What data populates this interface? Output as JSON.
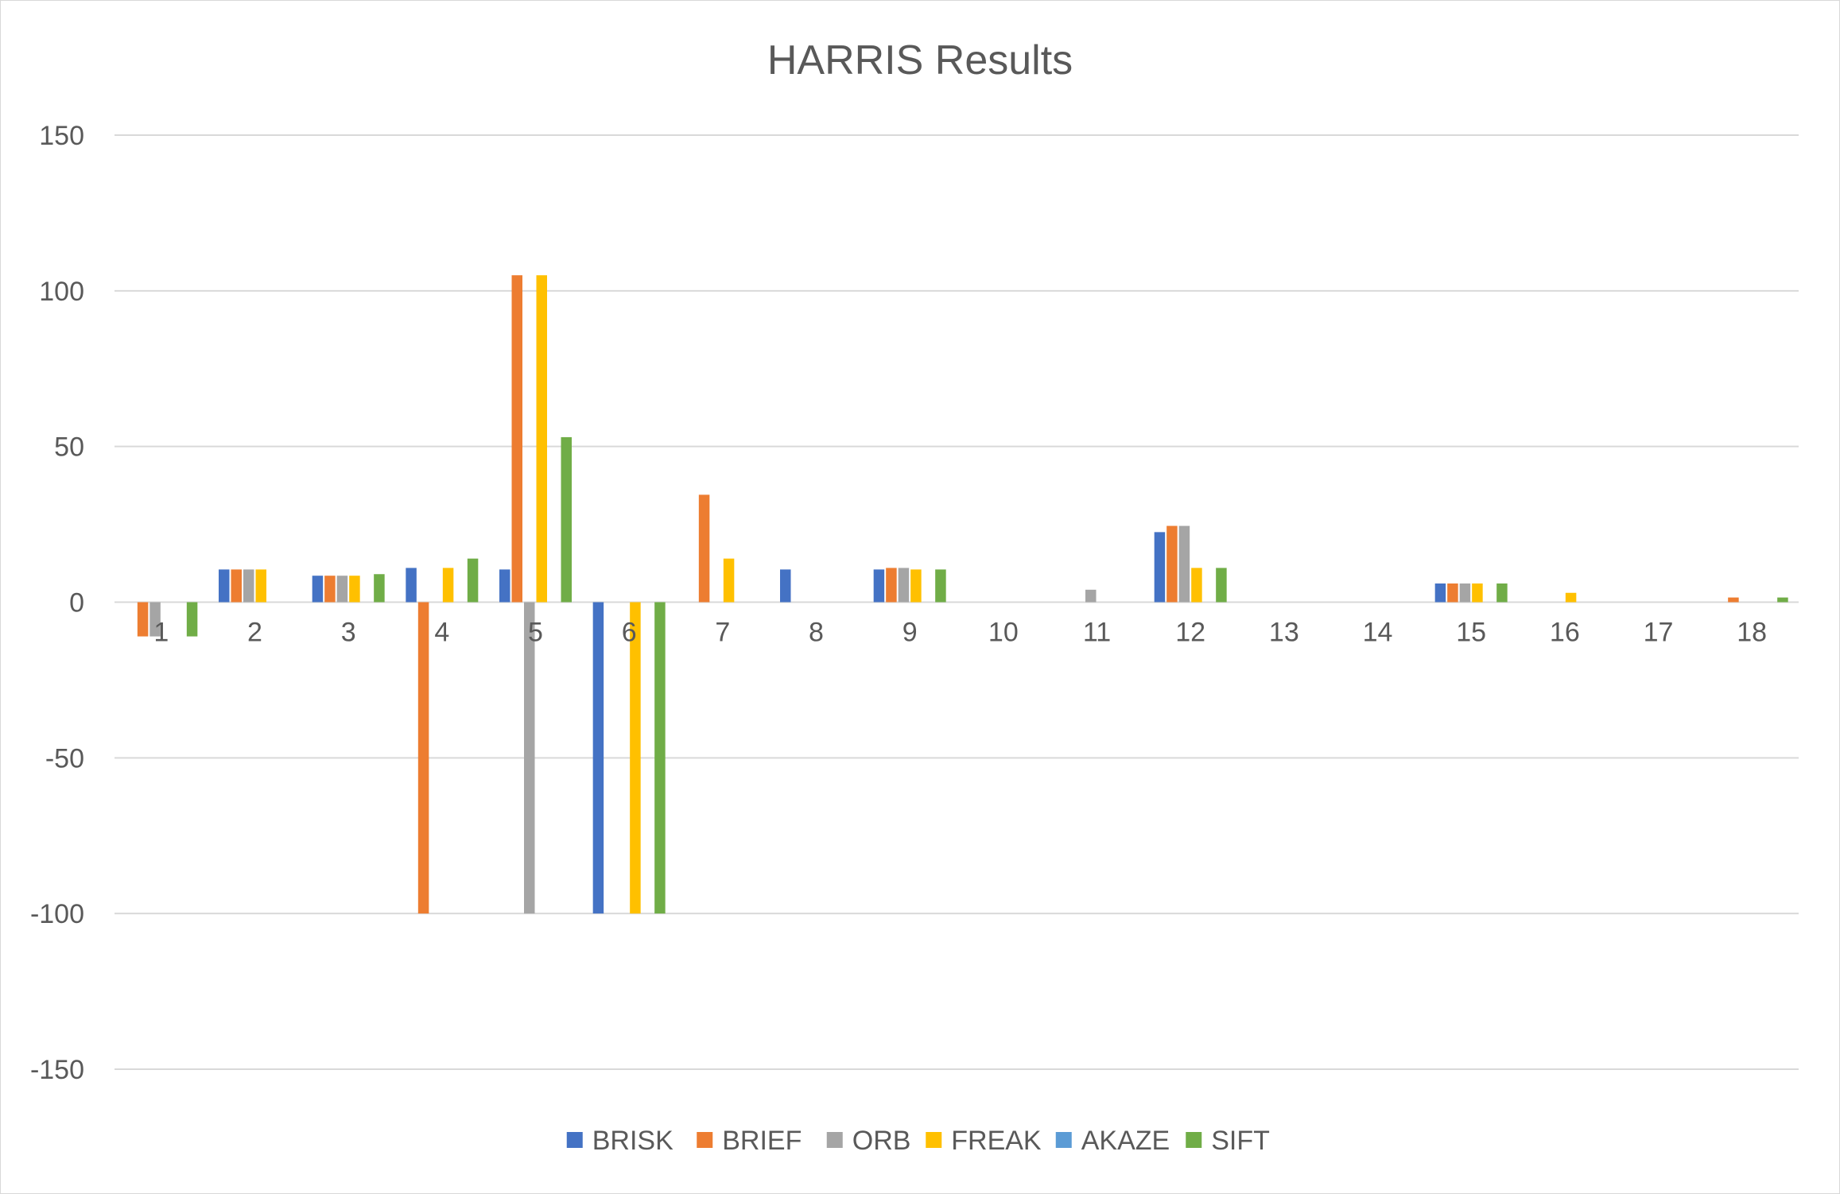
{
  "chart_data": {
    "type": "bar",
    "title": "HARRIS Results",
    "xlabel": "",
    "ylabel": "",
    "ylim": [
      -150,
      150
    ],
    "yticks": [
      150,
      100,
      50,
      0,
      -50,
      -100,
      -150
    ],
    "grid": true,
    "legend_position": "bottom",
    "categories": [
      "1",
      "2",
      "3",
      "4",
      "5",
      "6",
      "7",
      "8",
      "9",
      "10",
      "11",
      "12",
      "13",
      "14",
      "15",
      "16",
      "17",
      "18"
    ],
    "series": [
      {
        "name": "BRISK",
        "color": "#4472c4",
        "values": [
          0,
          10.5,
          8.5,
          11,
          10.5,
          -100,
          0,
          10.5,
          10.5,
          0,
          0,
          22.5,
          0,
          0,
          6,
          0,
          0,
          0
        ]
      },
      {
        "name": "BRIEF",
        "color": "#ed7d31",
        "values": [
          -11,
          10.5,
          8.5,
          -100,
          105,
          0,
          34.5,
          0,
          11,
          0,
          0,
          24.5,
          0,
          0,
          6,
          0,
          0,
          1.5
        ]
      },
      {
        "name": "ORB",
        "color": "#a5a5a5",
        "values": [
          -11,
          10.5,
          8.5,
          0,
          -100,
          0,
          0,
          0,
          11,
          0,
          4,
          24.5,
          0,
          0,
          6,
          0,
          0,
          0
        ]
      },
      {
        "name": "FREAK",
        "color": "#ffc000",
        "values": [
          0,
          10.5,
          8.5,
          11,
          105,
          -100,
          14,
          0,
          10.5,
          0,
          0,
          11,
          0,
          0,
          6,
          3,
          0,
          0
        ]
      },
      {
        "name": "AKAZE",
        "color": "#5b9bd5",
        "values": [
          0,
          0,
          0,
          0,
          0,
          0,
          0,
          0,
          0,
          0,
          0,
          0,
          0,
          0,
          0,
          0,
          0,
          0
        ]
      },
      {
        "name": "SIFT",
        "color": "#70ad47",
        "values": [
          -11,
          0,
          9,
          14,
          53,
          -100,
          0,
          0,
          10.5,
          0,
          0,
          11,
          0,
          0,
          6,
          0,
          0,
          1.5
        ]
      }
    ]
  }
}
